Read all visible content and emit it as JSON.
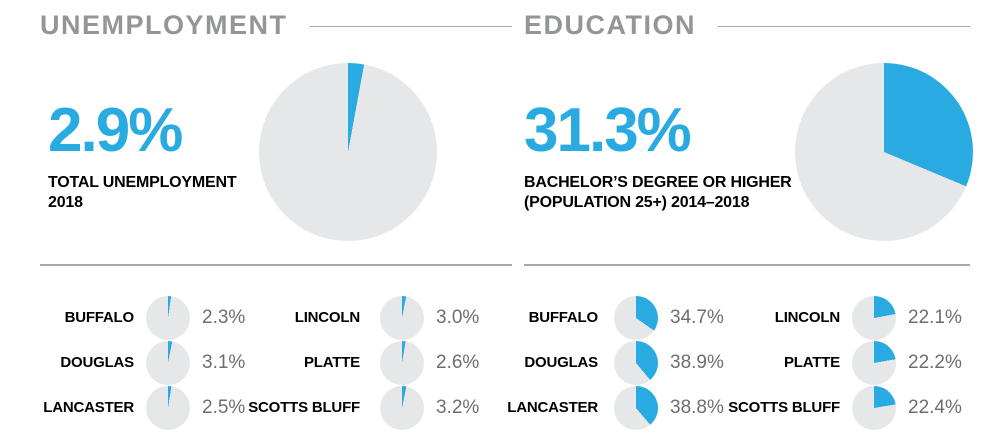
{
  "colors": {
    "accent": "#29ABE2",
    "pie_base": "#E6E7E8",
    "title_gray": "#939598",
    "rule_gray": "#A7A9AC",
    "value_gray": "#6D6E71",
    "label_black": "#000000"
  },
  "chart_data": [
    {
      "type": "pie",
      "title": "UNEMPLOYMENT",
      "stat_display": "2.9%",
      "stat_value": 2.9,
      "caption_line1": "TOTAL UNEMPLOYMENT",
      "caption_line2": "2018",
      "main_pie": {
        "slices": [
          {
            "label": "highlighted share",
            "value": 2.9
          },
          {
            "label": "remainder",
            "value": 97.1
          }
        ],
        "start_angle_deg": 0,
        "direction": "clockwise"
      },
      "counties": [
        {
          "name": "BUFFALO",
          "value": 2.3,
          "display": "2.3%"
        },
        {
          "name": "DOUGLAS",
          "value": 3.1,
          "display": "3.1%"
        },
        {
          "name": "LANCASTER",
          "value": 2.5,
          "display": "2.5%"
        },
        {
          "name": "LINCOLN",
          "value": 3.0,
          "display": "3.0%"
        },
        {
          "name": "PLATTE",
          "value": 2.6,
          "display": "2.6%"
        },
        {
          "name": "SCOTTS BLUFF",
          "value": 3.2,
          "display": "3.2%"
        }
      ]
    },
    {
      "type": "pie",
      "title": "EDUCATION",
      "stat_display": "31.3%",
      "stat_value": 31.3,
      "caption_line1": "BACHELOR’S DEGREE OR HIGHER",
      "caption_line2": "(POPULATION 25+) 2014–2018",
      "main_pie": {
        "slices": [
          {
            "label": "highlighted share",
            "value": 31.3
          },
          {
            "label": "remainder",
            "value": 68.7
          }
        ],
        "start_angle_deg": 0,
        "direction": "clockwise"
      },
      "counties": [
        {
          "name": "BUFFALO",
          "value": 34.7,
          "display": "34.7%"
        },
        {
          "name": "DOUGLAS",
          "value": 38.9,
          "display": "38.9%"
        },
        {
          "name": "LANCASTER",
          "value": 38.8,
          "display": "38.8%"
        },
        {
          "name": "LINCOLN",
          "value": 22.1,
          "display": "22.1%"
        },
        {
          "name": "PLATTE",
          "value": 22.2,
          "display": "22.2%"
        },
        {
          "name": "SCOTTS BLUFF",
          "value": 22.4,
          "display": "22.4%"
        }
      ]
    }
  ]
}
